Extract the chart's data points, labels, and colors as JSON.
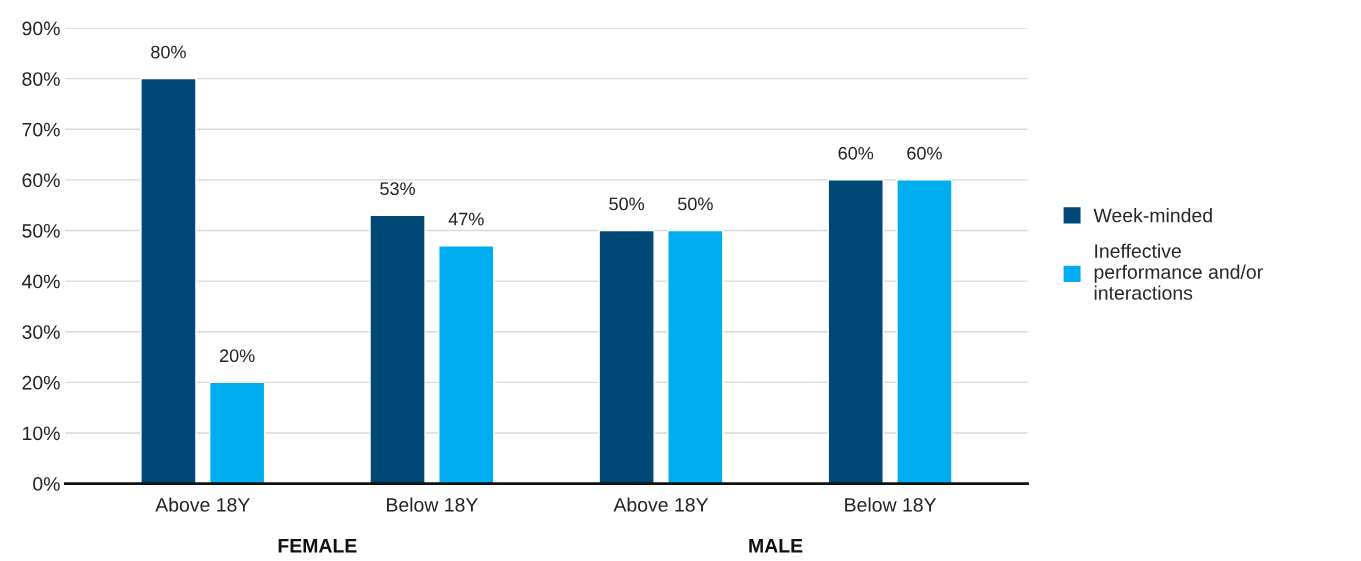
{
  "chart_data": {
    "type": "bar",
    "categories": [
      "Above 18Y",
      "Below 18Y",
      "Above 18Y",
      "Below 18Y"
    ],
    "series": [
      {
        "name": "Week-minded",
        "color": "#004876",
        "values": [
          80,
          53,
          50,
          60
        ],
        "value_labels": [
          "80%",
          "53%",
          "50%",
          "60%"
        ]
      },
      {
        "name": "Ineffective performance and/or interactions",
        "color": "#00aeef",
        "values": [
          20,
          47,
          50,
          60
        ],
        "value_labels": [
          "20%",
          "47%",
          "50%",
          "60%"
        ]
      }
    ],
    "ylim": [
      0,
      90
    ],
    "yticks": [
      {
        "value": 0,
        "label": "0%"
      },
      {
        "value": 10,
        "label": "10%"
      },
      {
        "value": 20,
        "label": "20%"
      },
      {
        "value": 30,
        "label": "30%"
      },
      {
        "value": 40,
        "label": "40%"
      },
      {
        "value": 50,
        "label": "50%"
      },
      {
        "value": 60,
        "label": "60%"
      },
      {
        "value": 70,
        "label": "70%"
      },
      {
        "value": 80,
        "label": "80%"
      },
      {
        "value": 90,
        "label": "90%"
      }
    ],
    "grid": "y",
    "legend": "right",
    "annotations": [
      "FEMALE",
      "MALE"
    ]
  }
}
